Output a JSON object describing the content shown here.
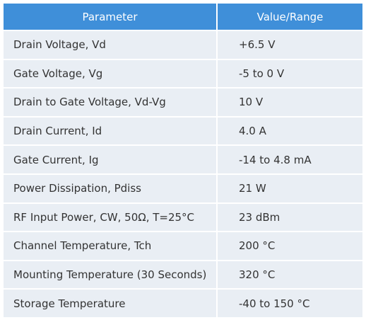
{
  "table": {
    "header": [
      "Parameter",
      "Value/Range"
    ],
    "rows": [
      [
        "Drain Voltage, Vd",
        "+6.5 V"
      ],
      [
        "Gate Voltage, Vg",
        "-5 to 0 V"
      ],
      [
        "Drain to Gate Voltage, Vd-Vg",
        "10 V"
      ],
      [
        "Drain Current, Id",
        "4.0 A"
      ],
      [
        "Gate Current, Ig",
        "-14 to 4.8 mA"
      ],
      [
        "Power Dissipation, Pdiss",
        "21 W"
      ],
      [
        "RF Input Power, CW, 50Ω, T=25°C",
        "23 dBm"
      ],
      [
        "Channel Temperature, Tch",
        "200 °C"
      ],
      [
        "Mounting Temperature (30 Seconds)",
        "320 °C"
      ],
      [
        "Storage Temperature",
        "-40 to 150 °C"
      ]
    ]
  }
}
